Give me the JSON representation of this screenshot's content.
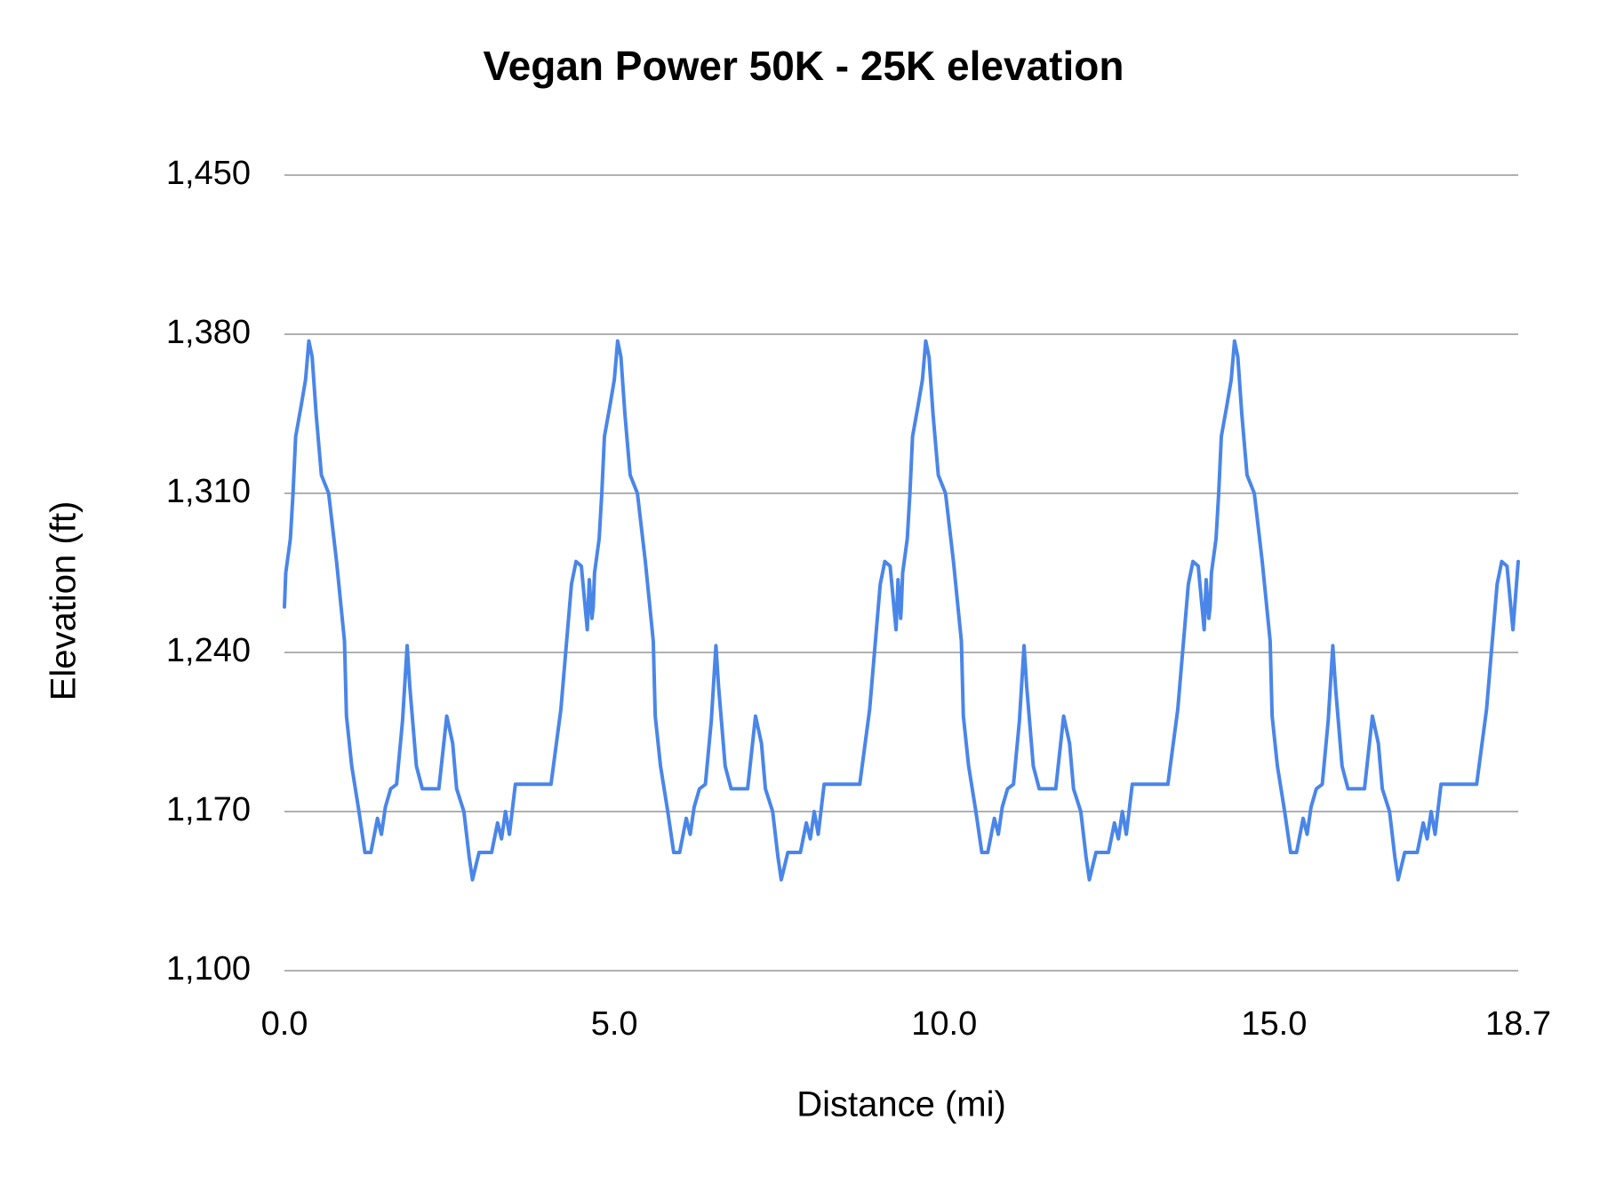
{
  "chart_data": {
    "type": "line",
    "title": "Vegan Power 50K - 25K elevation",
    "x_label": "Distance (mi)",
    "y_label": "Elevation (ft)",
    "xlim": [
      0,
      18.7
    ],
    "xticks": [
      {
        "value": 0,
        "label": "0.0"
      },
      {
        "value": 5,
        "label": "5.0"
      },
      {
        "value": 10,
        "label": "10.0"
      },
      {
        "value": 15,
        "label": "15.0"
      },
      {
        "value": 18.7,
        "label": "18.7"
      }
    ],
    "ylim": [
      1100,
      1450
    ],
    "yticks": [
      {
        "value": 1100,
        "label": "1,100"
      },
      {
        "value": 1170,
        "label": "1,170"
      },
      {
        "value": 1240,
        "label": "1,240"
      },
      {
        "value": 1310,
        "label": "1,310"
      },
      {
        "value": 1380,
        "label": "1,380"
      },
      {
        "value": 1450,
        "label": "1,450"
      }
    ],
    "grid": true,
    "x": [
      0.0,
      0.02,
      0.09,
      0.13,
      0.17,
      0.25,
      0.32,
      0.37,
      0.42,
      0.48,
      0.56,
      0.67,
      0.79,
      0.91,
      0.94,
      1.02,
      1.13,
      1.22,
      1.31,
      1.41,
      1.47,
      1.53,
      1.61,
      1.7,
      1.79,
      1.86,
      1.9,
      2.0,
      2.09,
      2.34,
      2.46,
      2.55,
      2.61,
      2.72,
      2.8,
      2.85,
      2.95,
      3.14,
      3.23,
      3.29,
      3.35,
      3.41,
      3.5,
      4.04,
      4.19,
      4.35,
      4.42,
      4.5,
      4.59,
      4.62,
      4.66,
      4.68,
      4.7,
      4.77,
      4.81,
      4.85,
      4.93,
      5.0,
      5.05,
      5.1,
      5.16,
      5.24,
      5.35,
      5.47,
      5.59,
      5.62,
      5.7,
      5.81,
      5.9,
      5.99,
      6.09,
      6.15,
      6.21,
      6.29,
      6.38,
      6.47,
      6.54,
      6.58,
      6.68,
      6.77,
      7.02,
      7.14,
      7.23,
      7.29,
      7.4,
      7.48,
      7.53,
      7.63,
      7.82,
      7.91,
      7.97,
      8.03,
      8.09,
      8.18,
      8.72,
      8.87,
      9.03,
      9.1,
      9.18,
      9.27,
      9.3,
      9.34,
      9.35,
      9.37,
      9.44,
      9.48,
      9.52,
      9.6,
      9.67,
      9.72,
      9.77,
      9.83,
      9.91,
      10.02,
      10.14,
      10.26,
      10.29,
      10.37,
      10.48,
      10.57,
      10.66,
      10.76,
      10.82,
      10.88,
      10.96,
      11.05,
      11.14,
      11.21,
      11.25,
      11.35,
      11.44,
      11.69,
      11.81,
      11.9,
      11.96,
      12.07,
      12.15,
      12.2,
      12.3,
      12.49,
      12.58,
      12.64,
      12.7,
      12.76,
      12.85,
      13.39,
      13.54,
      13.7,
      13.77,
      13.85,
      13.94,
      13.97,
      14.01,
      14.03,
      14.05,
      14.12,
      14.16,
      14.2,
      14.28,
      14.35,
      14.4,
      14.45,
      14.51,
      14.59,
      14.7,
      14.82,
      14.94,
      14.97,
      15.05,
      15.16,
      15.25,
      15.34,
      15.44,
      15.5,
      15.56,
      15.64,
      15.73,
      15.82,
      15.89,
      15.93,
      16.03,
      16.12,
      16.37,
      16.49,
      16.58,
      16.64,
      16.75,
      16.83,
      16.88,
      16.98,
      17.17,
      17.26,
      17.32,
      17.38,
      17.44,
      17.53,
      18.07,
      18.22,
      18.38,
      18.45,
      18.53,
      18.62,
      18.7
    ],
    "series": [
      {
        "name": "Elevation",
        "color": "#4a86e8",
        "values": [
          1260,
          1275,
          1290,
          1310,
          1335,
          1348,
          1360,
          1377,
          1370,
          1345,
          1318,
          1310,
          1280,
          1245,
          1212,
          1190,
          1170,
          1152,
          1152,
          1167,
          1160,
          1172,
          1180,
          1182,
          1210,
          1243,
          1225,
          1190,
          1180,
          1180,
          1212,
          1200,
          1180,
          1170,
          1150,
          1140,
          1152,
          1152,
          1165,
          1158,
          1170,
          1160,
          1182,
          1182,
          1215,
          1270,
          1280,
          1278,
          1250,
          1272,
          1255,
          1260,
          1275,
          1290,
          1310,
          1335,
          1348,
          1360,
          1377,
          1370,
          1345,
          1318,
          1310,
          1280,
          1245,
          1212,
          1190,
          1170,
          1152,
          1152,
          1167,
          1160,
          1172,
          1180,
          1182,
          1210,
          1243,
          1225,
          1190,
          1180,
          1180,
          1212,
          1200,
          1180,
          1170,
          1150,
          1140,
          1152,
          1152,
          1165,
          1158,
          1170,
          1160,
          1182,
          1182,
          1215,
          1270,
          1280,
          1278,
          1250,
          1272,
          1255,
          1260,
          1275,
          1290,
          1310,
          1335,
          1348,
          1360,
          1377,
          1370,
          1345,
          1318,
          1310,
          1280,
          1245,
          1212,
          1190,
          1170,
          1152,
          1152,
          1167,
          1160,
          1172,
          1180,
          1182,
          1210,
          1243,
          1225,
          1190,
          1180,
          1180,
          1212,
          1200,
          1180,
          1170,
          1150,
          1140,
          1152,
          1152,
          1165,
          1158,
          1170,
          1160,
          1182,
          1182,
          1215,
          1270,
          1280,
          1278,
          1250,
          1272,
          1255,
          1260,
          1275,
          1290,
          1310,
          1335,
          1348,
          1360,
          1377,
          1370,
          1345,
          1318,
          1310,
          1280,
          1245,
          1212,
          1190,
          1170,
          1152,
          1152,
          1167,
          1160,
          1172,
          1180,
          1182,
          1210,
          1243,
          1225,
          1190,
          1180,
          1180,
          1212,
          1200,
          1180,
          1170,
          1150,
          1140,
          1152,
          1152,
          1165,
          1158,
          1170,
          1160,
          1182,
          1182,
          1215,
          1270,
          1280,
          1278,
          1250,
          1280
        ]
      }
    ]
  }
}
